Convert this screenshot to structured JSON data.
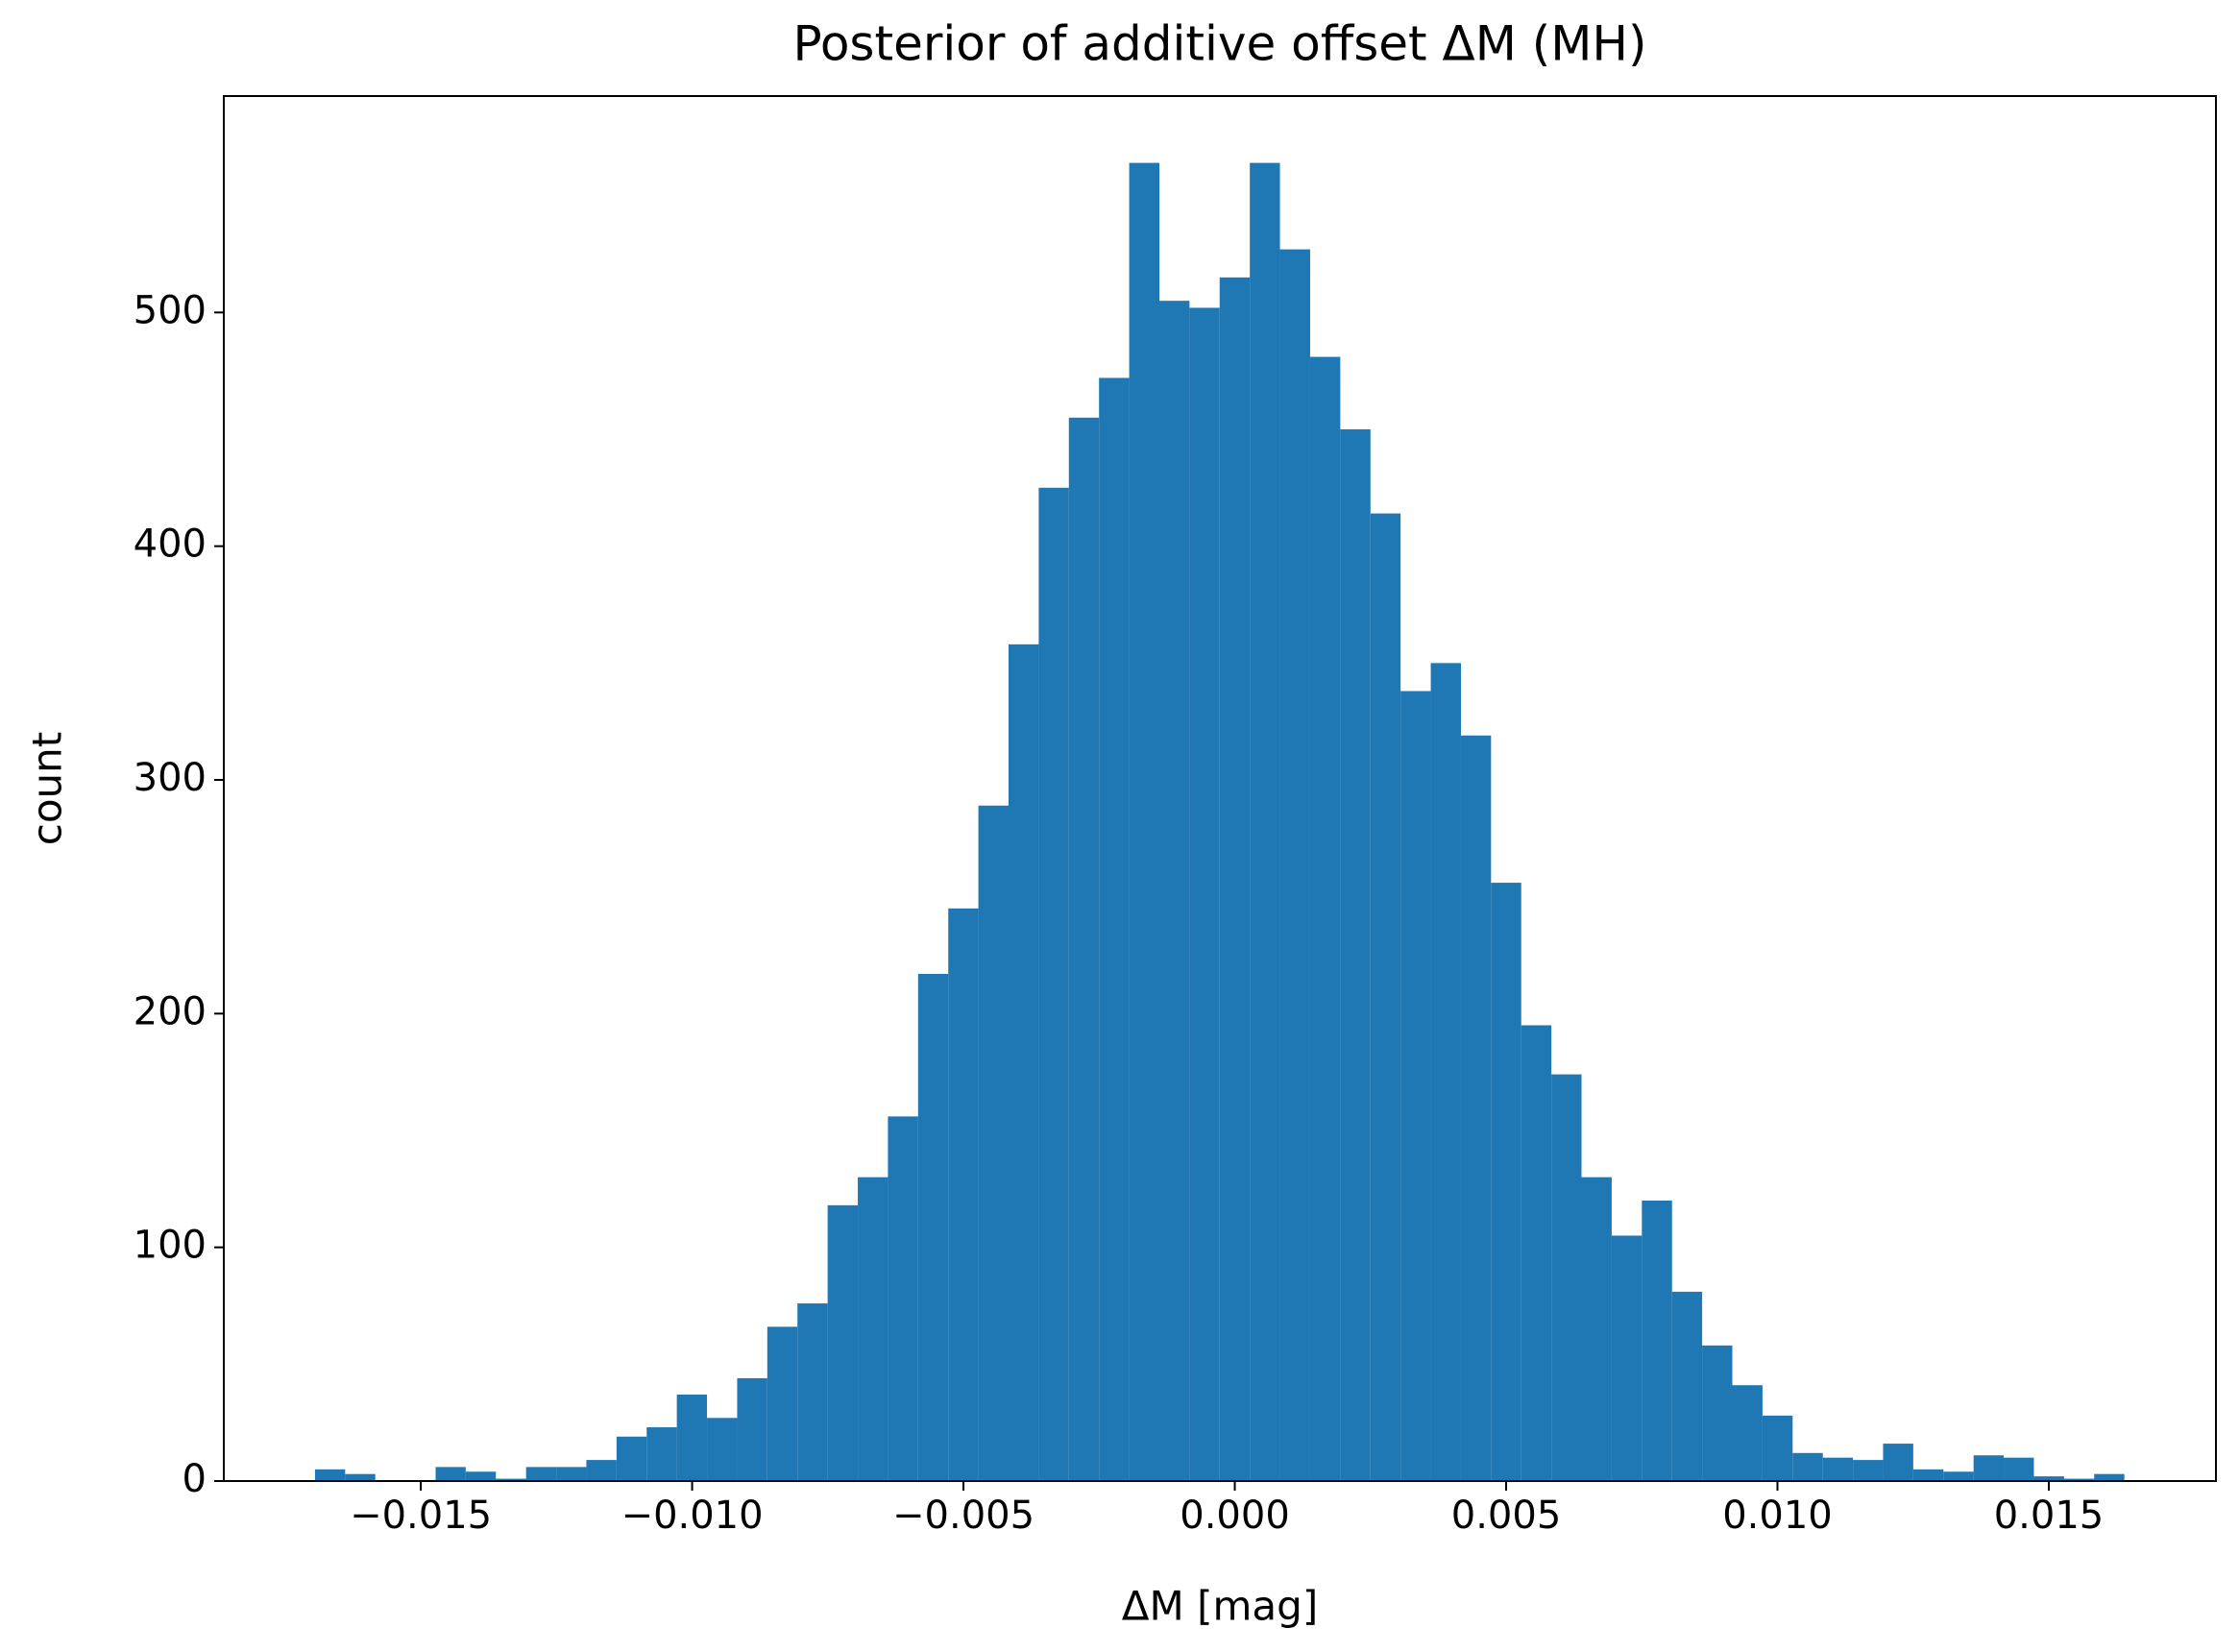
{
  "chart_data": {
    "type": "histogram",
    "title": "Posterior of additive offset ΔM (MH)",
    "x_label": "ΔM [mag]",
    "y_label": "count",
    "color": "#1f77b4",
    "bins": [
      -0.01695,
      -0.016394,
      -0.015839,
      -0.015283,
      -0.014727,
      -0.014172,
      -0.013616,
      -0.01306,
      -0.012504,
      -0.011949,
      -0.011393,
      -0.010837,
      -0.010282,
      -0.009726,
      -0.00917,
      -0.008615,
      -0.008059,
      -0.007503,
      -0.006947,
      -0.006392,
      -0.005836,
      -0.00528,
      -0.004725,
      -0.004169,
      -0.003613,
      -0.003058,
      -0.002502,
      -0.001946,
      -0.00139,
      -0.000835,
      -0.000279,
      0.000277,
      0.000832,
      0.001388,
      0.001944,
      0.0025,
      0.003055,
      0.003611,
      0.004167,
      0.004722,
      0.005278,
      0.005834,
      0.006389,
      0.006945,
      0.007501,
      0.008057,
      0.008612,
      0.009168,
      0.009724,
      0.010279,
      0.010835,
      0.011391,
      0.011946,
      0.012502,
      0.013058,
      0.013614,
      0.014169,
      0.014725,
      0.015281,
      0.015836,
      0.016392
    ],
    "values": [
      5,
      3,
      0,
      0,
      6,
      4,
      1,
      6,
      6,
      9,
      19,
      23,
      37,
      27,
      44,
      66,
      76,
      118,
      130,
      156,
      217,
      245,
      289,
      358,
      425,
      455,
      472,
      564,
      505,
      502,
      515,
      564,
      527,
      481,
      450,
      414,
      338,
      350,
      319,
      256,
      195,
      174,
      130,
      105,
      120,
      81,
      58,
      41,
      28,
      12,
      10,
      9,
      16,
      5,
      4,
      11,
      10,
      2,
      1,
      3
    ],
    "xlim": [
      -0.01863,
      0.01808
    ],
    "ylim": [
      0,
      592.6
    ],
    "xticks": [
      {
        "value": -0.015,
        "label": "−0.015"
      },
      {
        "value": -0.01,
        "label": "−0.010"
      },
      {
        "value": -0.005,
        "label": "−0.005"
      },
      {
        "value": 0,
        "label": "0.000"
      },
      {
        "value": 0.005,
        "label": "0.005"
      },
      {
        "value": 0.01,
        "label": "0.010"
      },
      {
        "value": 0.015,
        "label": "0.015"
      }
    ],
    "yticks": [
      0,
      100,
      200,
      300,
      400,
      500
    ]
  }
}
